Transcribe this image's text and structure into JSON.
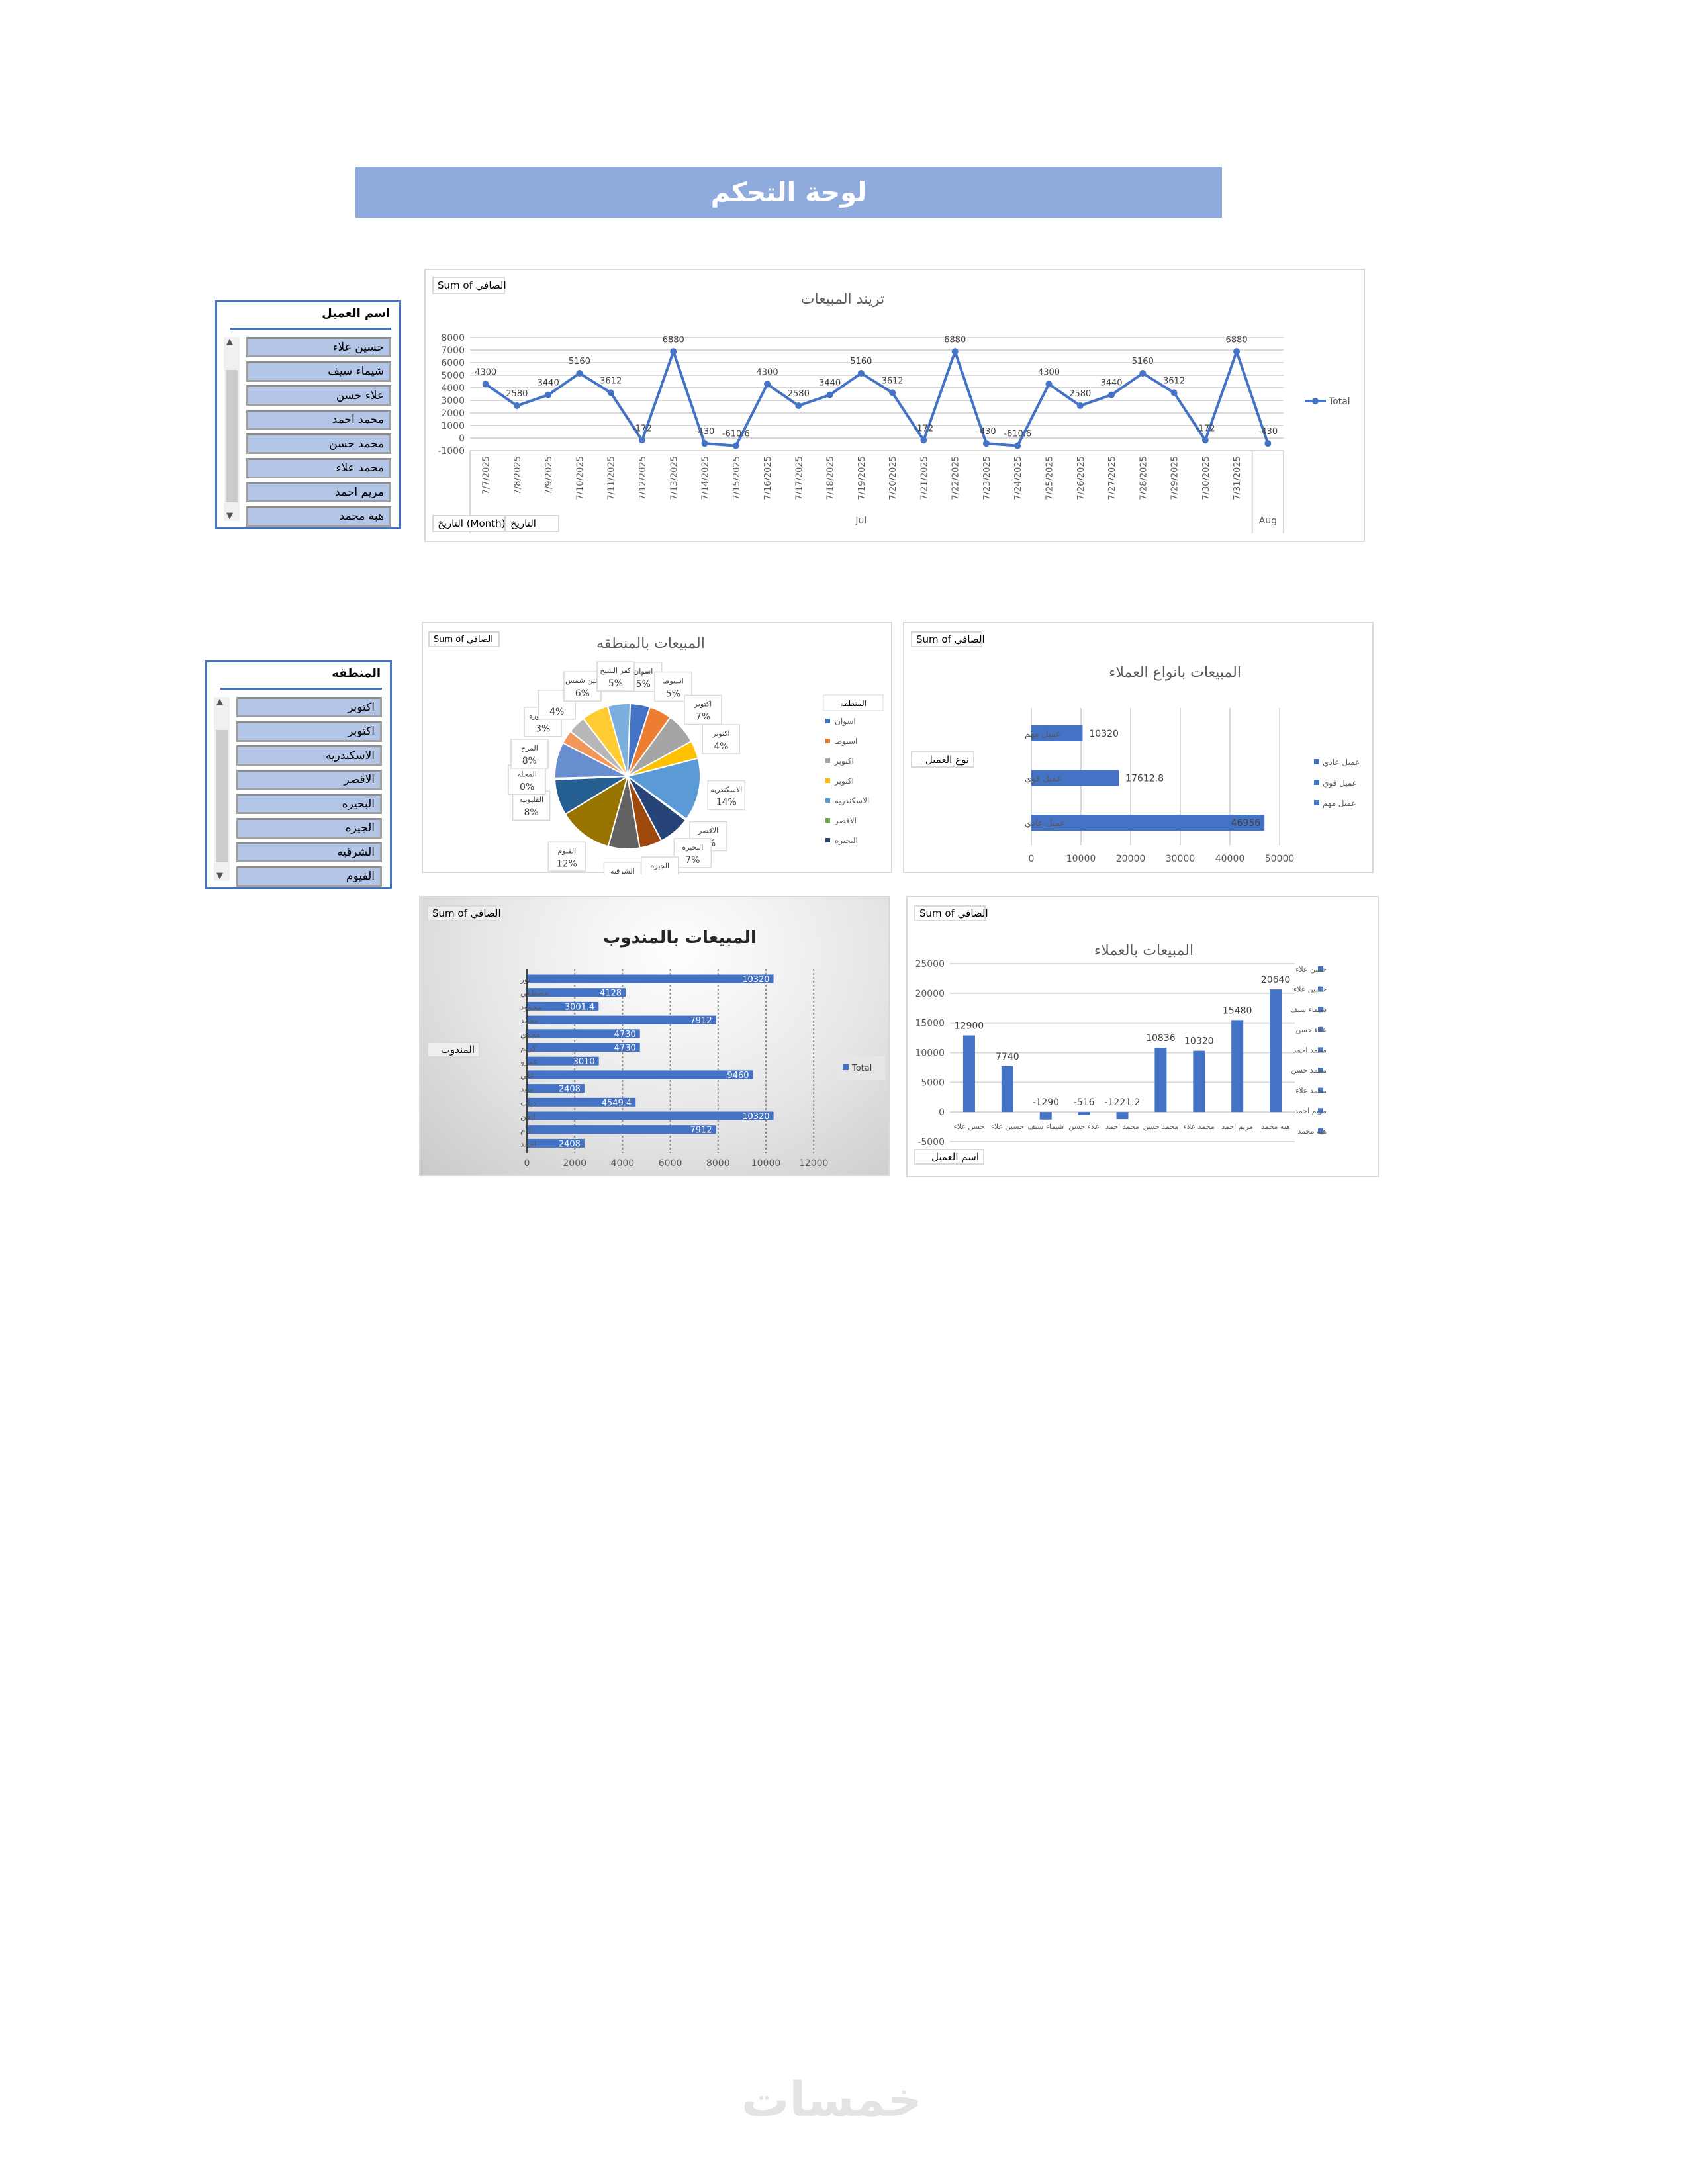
{
  "header": {
    "title": "لوحة التحكم",
    "color": "#8faadc"
  },
  "watermark": "خمسات",
  "colors": {
    "accent": "#4472c4",
    "slicer_item": "#b4c6e7"
  },
  "customer_slicer": {
    "title": "اسم العميل",
    "items": [
      "حسين علاء",
      "شيماء سيف",
      "علاء حسن",
      "محمد احمد",
      "محمد حسن",
      "محمد علاء",
      "مريم احمد",
      "هبه محمد"
    ]
  },
  "region_slicer": {
    "title": "المنطقه",
    "items": [
      "اكتوبر",
      "اكتوبر",
      "الاسكندريه",
      "الاقصر",
      "البحيره",
      "الجيزه",
      "الشرقيه",
      "الفيوم"
    ]
  },
  "chart_data": [
    {
      "id": "trend",
      "type": "line",
      "title": "تريند المبيعات",
      "value_field": "Sum of الصافي",
      "axis_fields": [
        "التاريخ (Month)",
        "التاريخ"
      ],
      "categories": [
        "7/7/2025",
        "7/8/2025",
        "7/9/2025",
        "7/10/2025",
        "7/11/2025",
        "7/12/2025",
        "7/13/2025",
        "7/14/2025",
        "7/15/2025",
        "7/16/2025",
        "7/17/2025",
        "7/18/2025",
        "7/19/2025",
        "7/20/2025",
        "7/21/2025",
        "7/22/2025",
        "7/23/2025",
        "7/24/2025",
        "7/25/2025",
        "7/26/2025",
        "7/27/2025",
        "7/28/2025",
        "7/29/2025",
        "7/30/2025",
        "7/31/2025",
        ""
      ],
      "groups": [
        {
          "label": "Jul",
          "count": 25
        },
        {
          "label": "Aug",
          "count": 1
        }
      ],
      "series": [
        {
          "name": "Total",
          "color": "#4472c4",
          "values": [
            4300,
            2580,
            3440,
            5160,
            3612,
            -172,
            6880,
            -430,
            -610.6,
            4300,
            2580,
            3440,
            5160,
            3612,
            -172,
            6880,
            -430,
            -610.6,
            4300,
            2580,
            3440,
            5160,
            3612,
            -172,
            6880,
            -430
          ]
        }
      ],
      "data_labels": [
        "4300",
        "2580",
        "3440",
        "5160",
        "3612",
        "-172",
        "6880",
        "-430",
        "-610.6",
        "4300",
        "2580",
        "3440",
        "5160",
        "3612",
        "-172",
        "6880",
        "-430",
        "-610.6",
        "4300",
        "2580",
        "3440",
        "5160",
        "3612",
        "-172",
        "6880",
        "-430"
      ],
      "ylim": [
        -1000,
        8000
      ],
      "yticks": [
        8000,
        7000,
        6000,
        5000,
        4000,
        3000,
        2000,
        1000,
        0,
        -1000
      ],
      "grid": true,
      "legend": "right"
    },
    {
      "id": "region",
      "type": "pie",
      "title": "المبيعات بالمنطقه",
      "value_field": "Sum of الصافي",
      "legend_title": "المنطقه",
      "slices": [
        {
          "label": "اسوان",
          "pct": 5,
          "color": "#4472c4"
        },
        {
          "label": "اسيوط",
          "pct": 5,
          "color": "#ed7d31"
        },
        {
          "label": "اكتوبر",
          "pct": 7,
          "color": "#a5a5a5"
        },
        {
          "label": "اكتوبر",
          "pct": 4,
          "color": "#ffc000"
        },
        {
          "label": "الاسكندريه",
          "pct": 14,
          "color": "#5b9bd5"
        },
        {
          "label": "الاقصر",
          "pct": 0,
          "color": "#70ad47"
        },
        {
          "label": "البحيره",
          "pct": 7,
          "color": "#264478"
        },
        {
          "label": "الجيزه",
          "pct": 5,
          "color": "#9e480e"
        },
        {
          "label": "الشرقيه",
          "pct": 7,
          "color": "#636363"
        },
        {
          "label": "الفيوم",
          "pct": 12,
          "color": "#997300"
        },
        {
          "label": "القليوبيه",
          "pct": 8,
          "color": "#255e91"
        },
        {
          "label": "المحله",
          "pct": 0,
          "color": "#43682b"
        },
        {
          "label": "المرج",
          "pct": 8,
          "color": "#698ed0"
        },
        {
          "label": "المنصوره",
          "pct": 3,
          "color": "#f1975a"
        },
        {
          "label": "",
          "pct": 4,
          "color": "#b7b7b7"
        },
        {
          "label": "عين شمس",
          "pct": 6,
          "color": "#ffcd33"
        },
        {
          "label": "كفر الشيخ",
          "pct": 5,
          "color": "#7cafdd"
        }
      ],
      "legend_visible": [
        "اسوان",
        "اسيوط",
        "اكتوبر",
        "اكتوبر",
        "الاسكندريه",
        "الاقصر",
        "البحيره"
      ],
      "legend": "right"
    },
    {
      "id": "custtype",
      "type": "bar",
      "orientation": "horizontal",
      "title": "المبيعات بانواع العملاء",
      "value_field": "Sum of الصافي",
      "axis_field": "نوع العميل",
      "categories": [
        "عميل مهم",
        "عميل قوي",
        "عميل عادي"
      ],
      "values": [
        10320,
        17612.8,
        46956
      ],
      "data_labels": [
        "10320",
        "17612.8",
        "46956"
      ],
      "legend_entries": [
        "عميل عادي",
        "عميل قوي",
        "عميل مهم"
      ],
      "xlim": [
        0,
        50000
      ],
      "xticks": [
        0,
        10000,
        20000,
        30000,
        40000,
        50000
      ],
      "grid": true,
      "legend": "right",
      "color": "#4472c4"
    },
    {
      "id": "rep",
      "type": "bar",
      "orientation": "horizontal",
      "title": "المبيعات بالمندوب",
      "value_field": "Sum of الصافي",
      "axis_field": "المندوب",
      "categories": [
        "نور",
        "مصطفي",
        "محمود",
        "محمد",
        "مجدي",
        "كريم",
        "عمرو",
        "علي",
        "سيد",
        "دياب",
        "ايمن",
        "ادم",
        "احمد"
      ],
      "values": [
        10320,
        4128,
        3001.4,
        7912,
        4730,
        4730,
        3010,
        9460,
        2408,
        4549.4,
        10320,
        7912,
        2408
      ],
      "data_labels": [
        "10320",
        "4128",
        "3001.4",
        "7912",
        "4730",
        "4730",
        "3010",
        "9460",
        "2408",
        "4549.4",
        "10320",
        "7912",
        "2408"
      ],
      "series_name": "Total",
      "xlim": [
        0,
        12000
      ],
      "xticks": [
        0,
        2000,
        4000,
        6000,
        8000,
        10000,
        12000
      ],
      "grid": true,
      "legend": "right",
      "color": "#4472c4"
    },
    {
      "id": "customers",
      "type": "bar",
      "orientation": "vertical",
      "title": "المبيعات بالعملاء",
      "value_field": "Sum of الصافي",
      "axis_field": "اسم العميل",
      "categories": [
        "حسن علاء",
        "حسين علاء",
        "شيماء سيف",
        "علاء حسن",
        "محمد احمد",
        "محمد حسن",
        "محمد علاء",
        "مريم احمد",
        "هبه محمد"
      ],
      "values": [
        12900,
        7740,
        -1290,
        -516,
        -1221.2,
        10836,
        10320,
        15480,
        20640
      ],
      "data_labels": [
        "12900",
        "7740",
        "-1290",
        "-516",
        "-1221.2",
        "10836",
        "10320",
        "15480",
        "20640"
      ],
      "ylim": [
        -5000,
        25000
      ],
      "yticks": [
        25000,
        20000,
        15000,
        10000,
        5000,
        0,
        -5000
      ],
      "grid": true,
      "legend": "right",
      "color": "#4472c4"
    }
  ]
}
